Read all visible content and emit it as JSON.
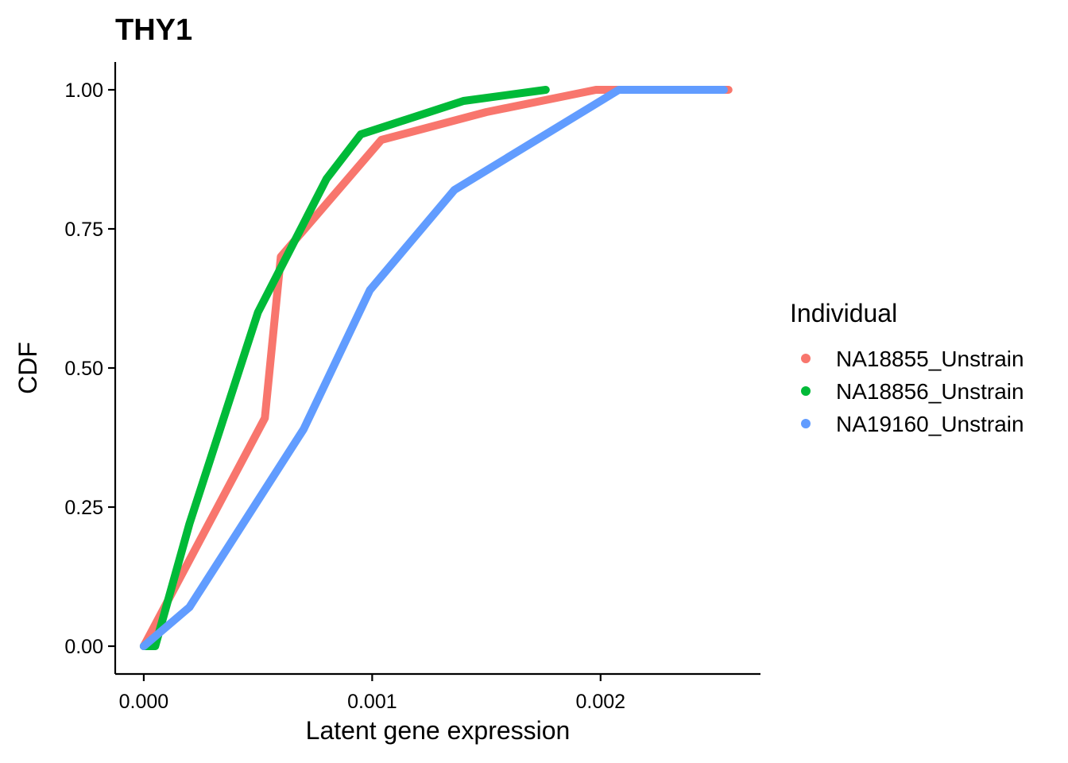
{
  "chart_data": {
    "type": "line",
    "title": "THY1",
    "xlabel": "Latent gene expression",
    "ylabel": "CDF",
    "xlim": [
      -0.000125,
      0.0027
    ],
    "ylim": [
      -0.05,
      1.05
    ],
    "x_ticks": [
      0.0,
      0.001,
      0.002
    ],
    "x_tick_labels": [
      "0.000",
      "0.001",
      "0.002"
    ],
    "y_ticks": [
      0.0,
      0.25,
      0.5,
      0.75,
      1.0
    ],
    "y_tick_labels": [
      "0.00",
      "0.25",
      "0.50",
      "0.75",
      "1.00"
    ],
    "grid": false,
    "legend": {
      "title": "Individual",
      "position": "right"
    },
    "series": [
      {
        "name": "NA18855_Unstrain",
        "color": "#F8766D",
        "x": [
          0.0,
          0.00053,
          0.0006,
          0.00104,
          0.0015,
          0.00198,
          0.00256
        ],
        "y": [
          0.0,
          0.41,
          0.7,
          0.91,
          0.96,
          1.0,
          1.0
        ]
      },
      {
        "name": "NA18856_Unstrain",
        "color": "#00BA38",
        "x": [
          0.0,
          5e-05,
          0.0002,
          0.0005,
          0.0008,
          0.00095,
          0.0014,
          0.00176
        ],
        "y": [
          0.0,
          0.0,
          0.22,
          0.6,
          0.84,
          0.92,
          0.98,
          1.0
        ]
      },
      {
        "name": "NA19160_Unstrain",
        "color": "#619CFF",
        "x": [
          0.0,
          0.0002,
          0.0007,
          0.00099,
          0.00136,
          0.00208,
          0.00254
        ],
        "y": [
          0.0,
          0.07,
          0.39,
          0.64,
          0.82,
          1.0,
          1.0
        ]
      }
    ]
  }
}
